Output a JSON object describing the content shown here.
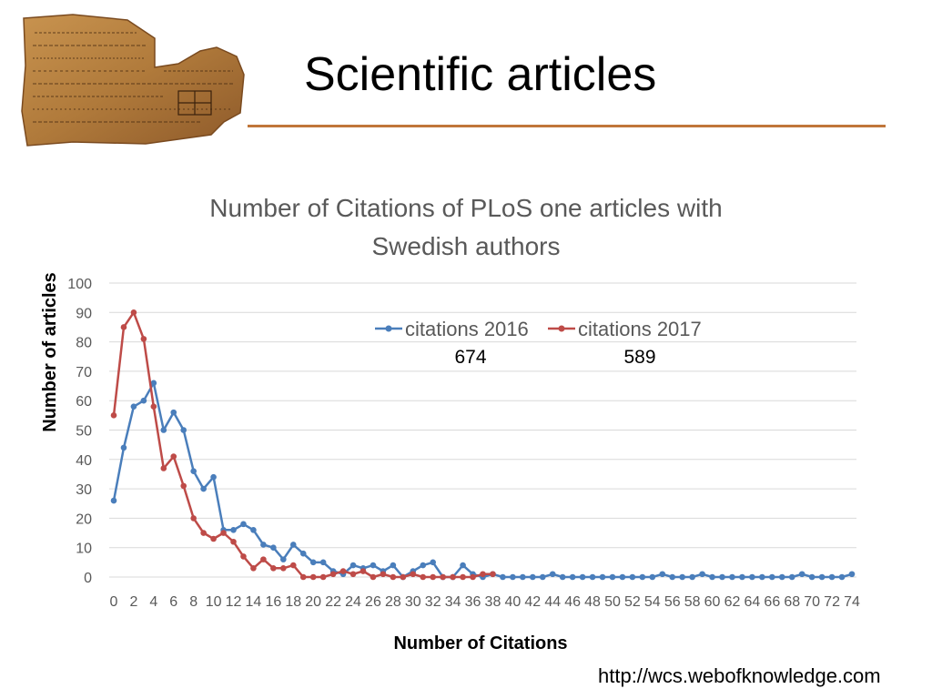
{
  "slide": {
    "title": "Scientific articles",
    "source_url": "http://wcs.webofknowledge.com"
  },
  "colors": {
    "series_2016": "#4A7EBB",
    "series_2017": "#BE4B48",
    "rule": "#C0763A"
  },
  "chart_data": {
    "type": "line",
    "title": "Number of Citations of PLoS one articles with Swedish authors",
    "title_lines": [
      "Number of Citations of PLoS one articles with",
      "Swedish authors"
    ],
    "xlabel": "Number of Citations",
    "ylabel": "Number of articles",
    "ylim": [
      0,
      100
    ],
    "yticks": [
      0,
      10,
      20,
      30,
      40,
      50,
      60,
      70,
      80,
      90,
      100
    ],
    "xticks": [
      0,
      2,
      4,
      6,
      8,
      10,
      12,
      14,
      16,
      18,
      20,
      22,
      24,
      26,
      28,
      30,
      32,
      34,
      36,
      38,
      40,
      42,
      44,
      46,
      48,
      50,
      52,
      54,
      56,
      58,
      60,
      62,
      64,
      66,
      68,
      70,
      72,
      74
    ],
    "grid": true,
    "legend_position": "top-center",
    "series": [
      {
        "name": "citations 2016",
        "total": "674",
        "color": "#4A7EBB",
        "x": [
          0,
          1,
          2,
          3,
          4,
          5,
          6,
          7,
          8,
          9,
          10,
          11,
          12,
          13,
          14,
          15,
          16,
          17,
          18,
          19,
          20,
          21,
          22,
          23,
          24,
          25,
          26,
          27,
          28,
          29,
          30,
          31,
          32,
          33,
          34,
          35,
          36,
          37,
          38,
          39,
          40,
          41,
          42,
          43,
          44,
          45,
          46,
          47,
          48,
          49,
          50,
          51,
          52,
          53,
          54,
          55,
          56,
          57,
          58,
          59,
          60,
          61,
          62,
          63,
          64,
          65,
          66,
          67,
          68,
          69,
          70,
          71,
          72,
          73,
          74
        ],
        "values": [
          26,
          44,
          58,
          60,
          66,
          50,
          56,
          50,
          36,
          30,
          34,
          16,
          16,
          18,
          16,
          11,
          10,
          6,
          11,
          8,
          5,
          5,
          2,
          1,
          4,
          3,
          4,
          2,
          4,
          0,
          2,
          4,
          5,
          0,
          0,
          4,
          1,
          0,
          1,
          0,
          0,
          0,
          0,
          0,
          1,
          0,
          0,
          0,
          0,
          0,
          0,
          0,
          0,
          0,
          0,
          1,
          0,
          0,
          0,
          1,
          0,
          0,
          0,
          0,
          0,
          0,
          0,
          0,
          0,
          1,
          0,
          0,
          0,
          0,
          1
        ]
      },
      {
        "name": "citations 2017",
        "total": "589",
        "color": "#BE4B48",
        "x": [
          0,
          1,
          2,
          3,
          4,
          5,
          6,
          7,
          8,
          9,
          10,
          11,
          12,
          13,
          14,
          15,
          16,
          17,
          18,
          19,
          20,
          21,
          22,
          23,
          24,
          25,
          26,
          27,
          28,
          29,
          30,
          31,
          32,
          33,
          34,
          35,
          36,
          37,
          38
        ],
        "values": [
          55,
          85,
          90,
          81,
          58,
          37,
          41,
          31,
          20,
          15,
          13,
          15,
          12,
          7,
          3,
          6,
          3,
          3,
          4,
          0,
          0,
          0,
          1,
          2,
          1,
          2,
          0,
          1,
          0,
          0,
          1,
          0,
          0,
          0,
          0,
          0,
          0,
          1,
          1
        ]
      }
    ]
  }
}
